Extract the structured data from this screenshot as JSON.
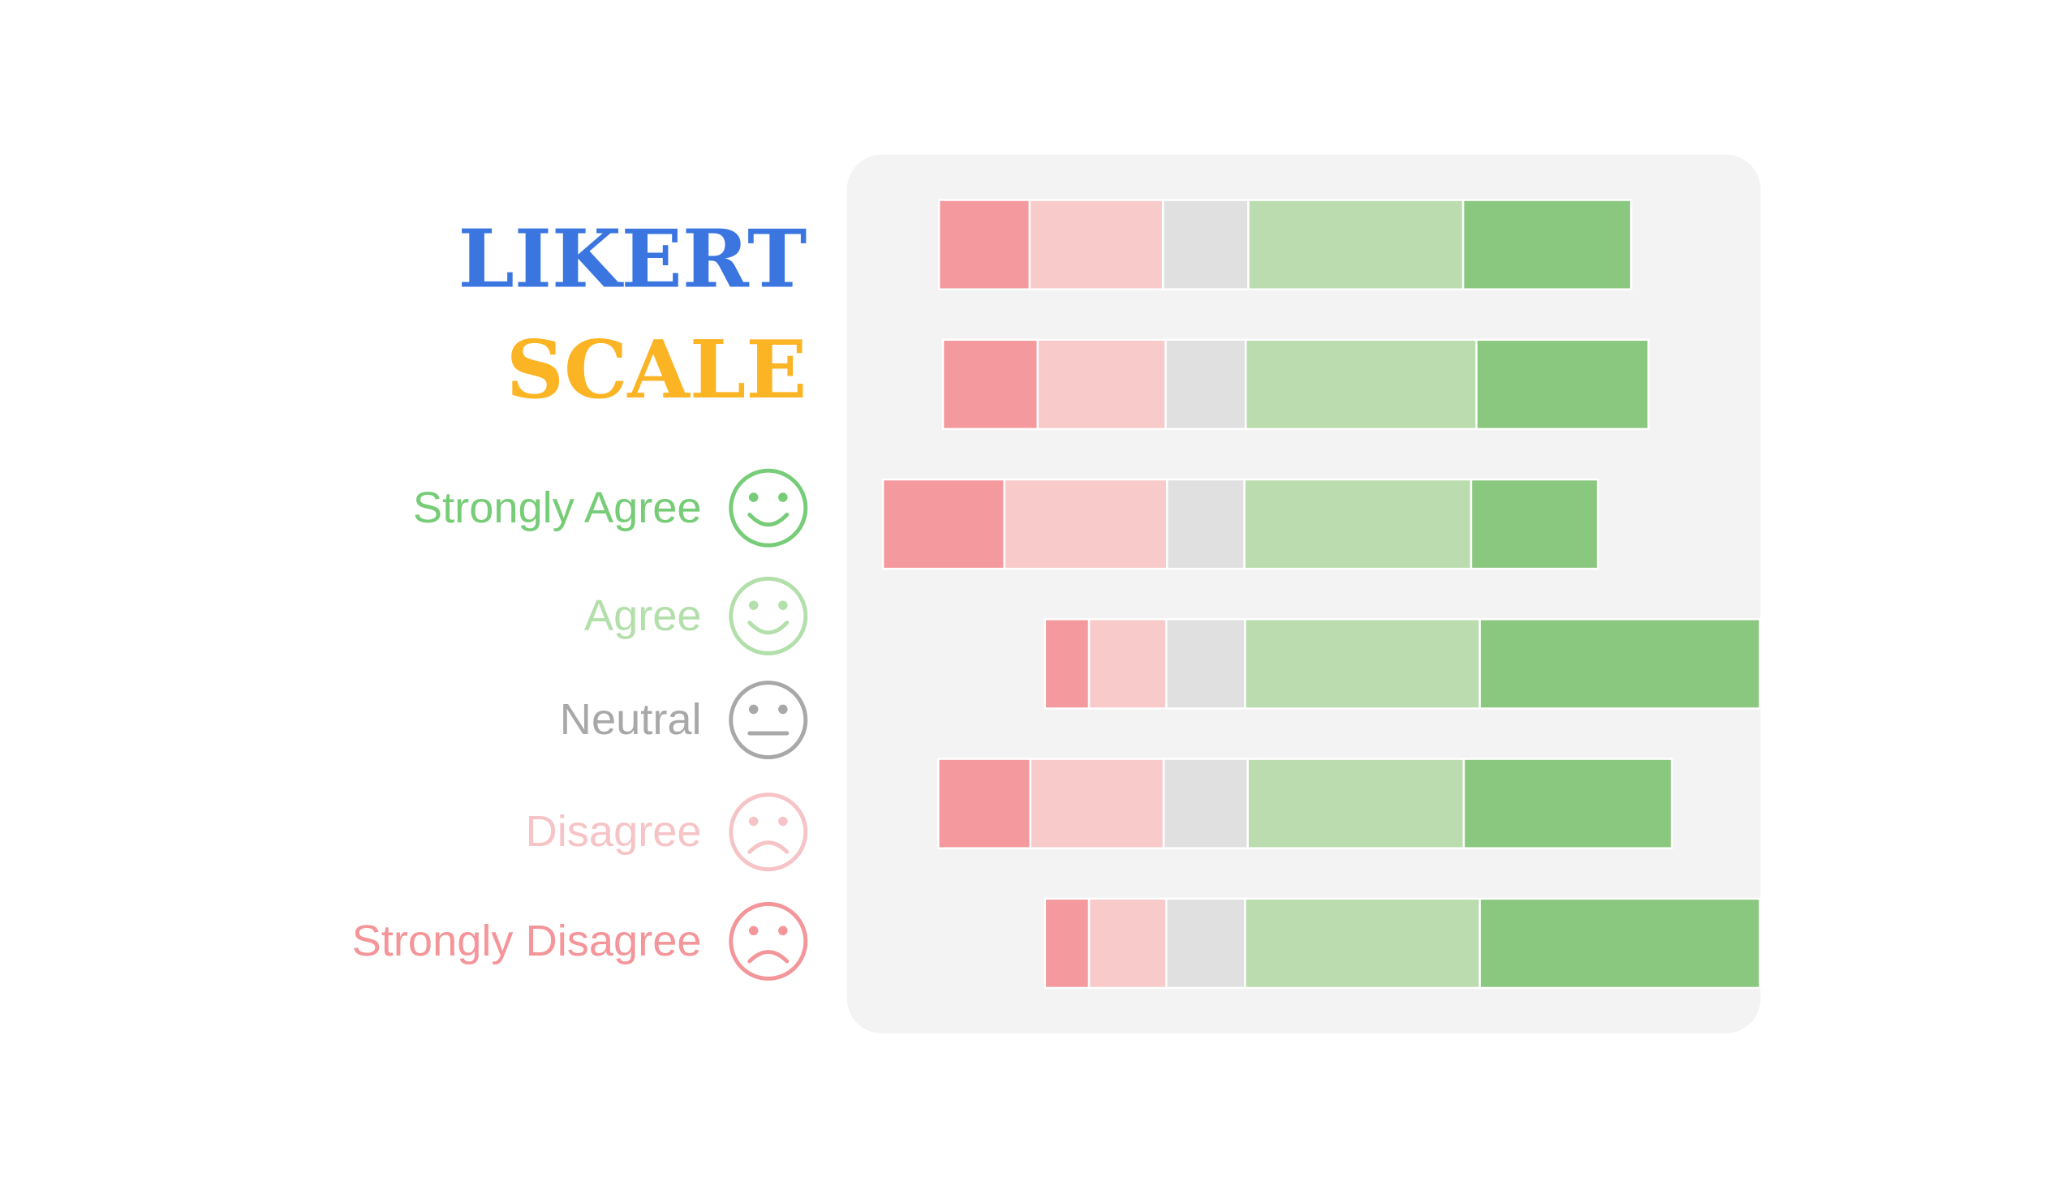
{
  "chart_data": {
    "type": "likert",
    "title": "LIKERT",
    "subtitle": "SCALE",
    "title_color": "#3a75e0",
    "subtitle_color": "#fbb424",
    "categories": [
      null,
      null,
      null,
      null,
      null,
      null
    ],
    "series": [
      {
        "name": "Strongly Disagree",
        "color": "#f49a9e",
        "text_color": "#f49599",
        "values": [
          68,
          71,
          91,
          33,
          69,
          33
        ]
      },
      {
        "name": "Disagree",
        "color": "#f8caca",
        "text_color": "#f6c4c6",
        "values": [
          100,
          96,
          122,
          58,
          100,
          58
        ]
      },
      {
        "name": "Neutral",
        "color": "#e0e0e0",
        "text_color": "#a8a8a8",
        "values": [
          64,
          60,
          58,
          59,
          63,
          59
        ]
      },
      {
        "name": "Agree",
        "color": "#badcae",
        "text_color": "#b3dfab",
        "values": [
          161,
          173,
          170,
          176,
          162,
          176
        ]
      },
      {
        "name": "Strongly Agree",
        "color": "#8bc87f",
        "text_color": "#77cc77",
        "values": [
          126,
          129,
          95,
          210,
          156,
          210
        ]
      }
    ]
  }
}
